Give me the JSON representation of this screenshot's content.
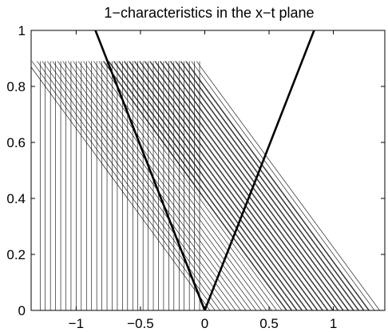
{
  "chart_data": {
    "type": "line",
    "title": "1−characteristics in the x−t plane",
    "xlabel": "",
    "ylabel": "",
    "xlim": [
      -1.35,
      1.4
    ],
    "ylim": [
      0,
      1
    ],
    "xticks": [
      -1,
      -0.5,
      0,
      0.5,
      1
    ],
    "xtick_labels": [
      "−1",
      "−0.5",
      "0",
      "0.5",
      "1"
    ],
    "yticks": [
      0,
      0.2,
      0.4,
      0.6,
      0.8,
      1
    ],
    "ytick_labels": [
      "0",
      "0.2",
      "0.4",
      "0.6",
      "0.8",
      "1"
    ],
    "grid": false,
    "legend": "none",
    "thin_line_color": "#000000",
    "thick_line_color": "#000000",
    "characteristics": {
      "t_top": 0.89,
      "vertical": {
        "x": [
          -1.28,
          -1.24,
          -1.2,
          -1.16,
          -1.12,
          -1.08,
          -1.04,
          -1.0,
          -0.96,
          -0.92,
          -0.88,
          -0.84,
          -0.8,
          -0.76,
          -0.72,
          -0.68,
          -0.64,
          -0.6,
          -0.56,
          -0.52,
          -0.48,
          -0.44,
          -0.4,
          -0.36,
          -0.32,
          -0.28,
          -0.24,
          -0.2,
          -0.16,
          -0.12,
          -0.08,
          -0.04
        ]
      },
      "slanted": {
        "x_at_t0": [
          0.04,
          0.08,
          0.12,
          0.16,
          0.2,
          0.24,
          0.28,
          0.32,
          0.36,
          0.4,
          0.44,
          0.48,
          0.52,
          0.56,
          0.6,
          0.64,
          0.68,
          0.72,
          0.76,
          0.8,
          0.84,
          0.88,
          0.92,
          0.96,
          1.0,
          1.04,
          1.08,
          1.12,
          1.16,
          1.2,
          1.24,
          1.28,
          1.32,
          1.36
        ],
        "x_at_t_top": [
          -0.79,
          -0.75,
          -0.71,
          -0.67,
          -0.63,
          -0.59,
          -0.55,
          -0.51,
          -0.47,
          -0.43,
          -0.39,
          -0.35,
          -0.31,
          -0.27,
          -0.23,
          -0.19,
          -0.15
        ]
      }
    },
    "series": [
      {
        "style": "thick",
        "x": [
          0,
          -0.85
        ],
        "y": [
          0,
          1
        ]
      },
      {
        "style": "thick",
        "x": [
          0,
          0.85
        ],
        "y": [
          0,
          1
        ]
      }
    ]
  }
}
